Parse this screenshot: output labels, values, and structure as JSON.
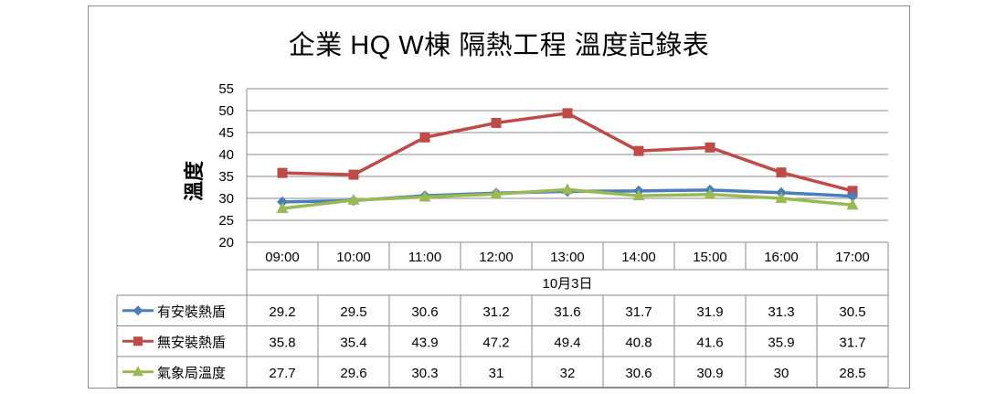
{
  "chart_data": {
    "type": "line",
    "title": "企業 HQ W棟 隔熱工程 溫度記錄表",
    "xlabel": "10月3日",
    "ylabel": "溫度",
    "ylim": [
      20,
      55
    ],
    "yticks": [
      20,
      25,
      30,
      35,
      40,
      45,
      50,
      55
    ],
    "grid": true,
    "legend": "data-table-left",
    "categories": [
      "09:00",
      "10:00",
      "11:00",
      "12:00",
      "13:00",
      "14:00",
      "15:00",
      "16:00",
      "17:00"
    ],
    "series": [
      {
        "name": "有安裝熱盾",
        "color": "#4a7ebb",
        "marker": "diamond",
        "values": [
          29.2,
          29.5,
          30.6,
          31.2,
          31.6,
          31.7,
          31.9,
          31.3,
          30.5
        ],
        "labels": [
          "29.2",
          "29.5",
          "30.6",
          "31.2",
          "31.6",
          "31.7",
          "31.9",
          "31.3",
          "30.5"
        ]
      },
      {
        "name": "無安裝熱盾",
        "color": "#be4b48",
        "marker": "square",
        "values": [
          35.8,
          35.4,
          43.9,
          47.2,
          49.4,
          40.8,
          41.6,
          35.9,
          31.7
        ],
        "labels": [
          "35.8",
          "35.4",
          "43.9",
          "47.2",
          "49.4",
          "40.8",
          "41.6",
          "35.9",
          "31.7"
        ]
      },
      {
        "name": "氣象局溫度",
        "color": "#98b954",
        "marker": "triangle",
        "values": [
          27.7,
          29.6,
          30.3,
          31,
          32,
          30.6,
          30.9,
          30,
          28.5
        ],
        "labels": [
          "27.7",
          "29.6",
          "30.3",
          "31",
          "32",
          "30.6",
          "30.9",
          "30",
          "28.5"
        ]
      }
    ]
  }
}
